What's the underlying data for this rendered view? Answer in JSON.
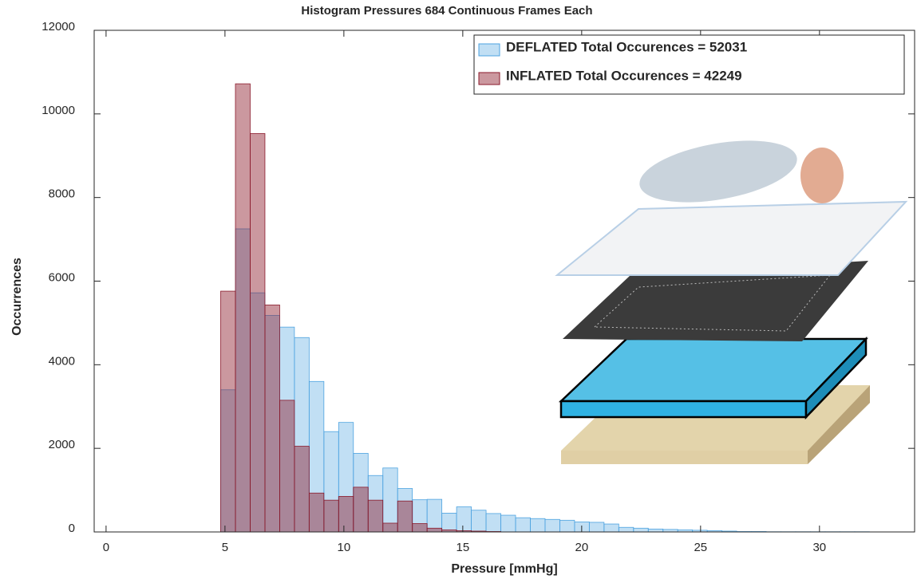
{
  "chart_data": {
    "type": "histogram",
    "title": "Histogram Pressures 684 Continuous Frames Each",
    "x_label": "Pressure [mmHg]",
    "y_label": "Occurrences",
    "bins": [
      1.1,
      1.72,
      2.34,
      2.96,
      3.58,
      4.2,
      4.82,
      5.44,
      6.06,
      6.68,
      7.3,
      7.92,
      8.54,
      9.16,
      9.78,
      10.4,
      11.02,
      11.64,
      12.26,
      12.88,
      13.5,
      14.12,
      14.74,
      15.36,
      15.98,
      16.6,
      17.22,
      17.84,
      18.46,
      19.08,
      19.7,
      20.32,
      20.94,
      21.56,
      22.18,
      22.8,
      23.42,
      24.04,
      24.66,
      25.28,
      25.9,
      26.52,
      27.14,
      27.76,
      28.38,
      29.0,
      29.62,
      30.24,
      30.86,
      31.48,
      32.1
    ],
    "series": [
      {
        "name": "DEFLATED Total Occurences = 52031",
        "color": "#4da3e0",
        "values": [
          0,
          0,
          0,
          0,
          0,
          0,
          3400,
          7250,
          5720,
          5180,
          4900,
          4650,
          3600,
          2400,
          2620,
          1880,
          1350,
          1530,
          1040,
          770,
          780,
          450,
          600,
          520,
          440,
          400,
          340,
          320,
          300,
          280,
          240,
          230,
          190,
          110,
          90,
          70,
          60,
          50,
          40,
          30,
          20,
          10,
          10,
          5,
          5,
          5,
          5,
          5,
          5,
          5
        ]
      },
      {
        "name": "INFLATED Total Occurences = 42249",
        "color": "#8b1a2b",
        "values": [
          0,
          0,
          0,
          0,
          0,
          0,
          5760,
          10720,
          9530,
          5430,
          3150,
          2050,
          930,
          760,
          850,
          1070,
          760,
          210,
          740,
          200,
          90,
          50,
          30,
          20,
          10,
          0,
          0,
          0,
          0,
          0,
          0,
          0,
          0,
          0,
          0,
          0,
          0,
          0,
          0,
          0,
          0,
          0,
          0,
          0,
          0,
          0,
          0,
          0,
          0,
          0
        ]
      }
    ],
    "xlim": [
      -0.5,
      34
    ],
    "ylim": [
      0,
      12000
    ],
    "xticks": [
      0,
      5,
      10,
      15,
      20,
      25,
      30
    ],
    "yticks": [
      0,
      2000,
      4000,
      6000,
      8000,
      10000,
      12000
    ],
    "legend": "upper right"
  }
}
